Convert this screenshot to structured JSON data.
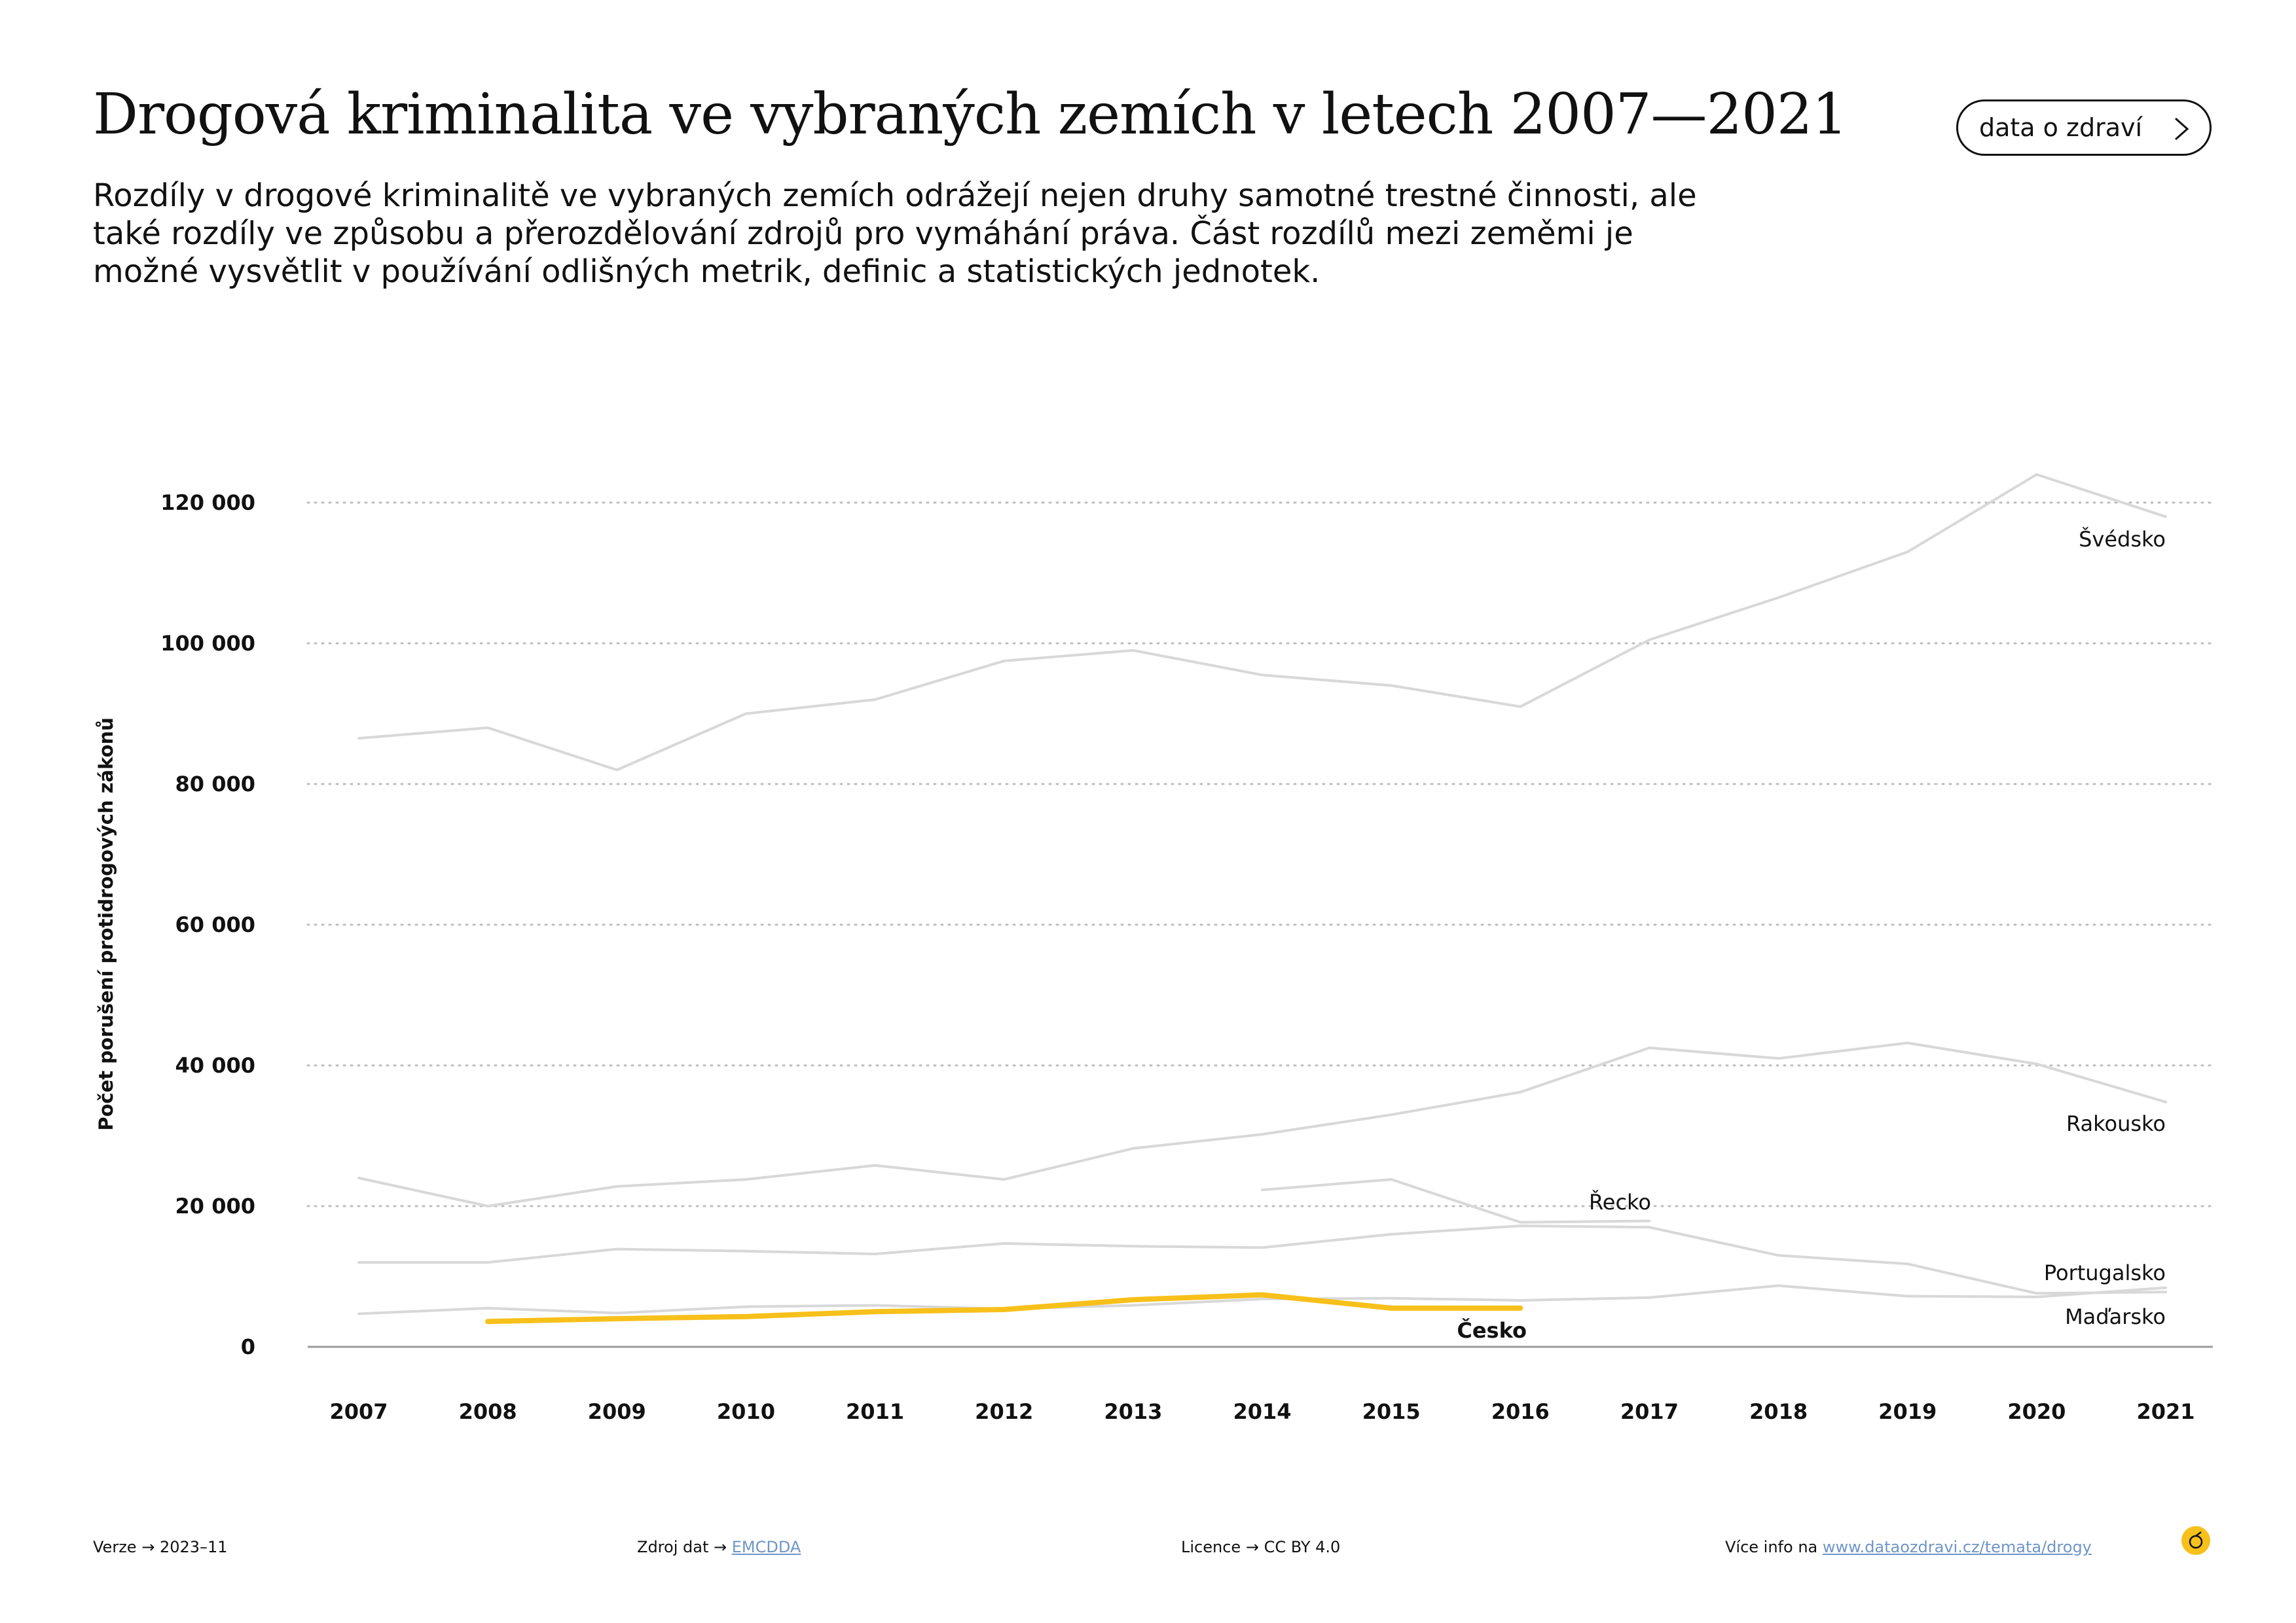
{
  "header": {
    "title": "Drogová kriminalita ve vybraných zemích v letech 2007—2021",
    "subtitle": "Rozdíly v drogové kriminalitě ve vybraných zemích odrážejí nejen druhy samotné trestné činnosti, ale také rozdíly ve způsobu a přerozdělování zdrojů pro vymáhání práva. Část rozdílů mezi zeměmi je možné vysvětlit v používání odlišných metrik, definic a statistických jednotek.",
    "button_label": "data o zdraví"
  },
  "footer": {
    "version_label": "Verze",
    "version_value": "2023–11",
    "source_label": "Zdroj dat",
    "source_value": "EMCDDA",
    "license_label": "Licence",
    "license_value": "CC BY 4.0",
    "more_label": "Více info na",
    "more_value": "www.dataozdravi.cz/temata/drogy",
    "arrow": "→"
  },
  "colors": {
    "highlight": "#f7c01a",
    "muted_line": "#d8d8d8",
    "grid": "#bdbdbd",
    "text": "#111111",
    "link": "#6f95c8"
  },
  "chart_data": {
    "type": "line",
    "title": "",
    "xlabel": "",
    "ylabel": "Počet porušení protidrogových zákonů",
    "x": [
      2007,
      2008,
      2009,
      2010,
      2011,
      2012,
      2013,
      2014,
      2015,
      2016,
      2017,
      2018,
      2019,
      2020,
      2021
    ],
    "ylim": [
      0,
      125000
    ],
    "yticks": [
      0,
      20000,
      40000,
      60000,
      80000,
      100000,
      120000
    ],
    "ytick_labels": [
      "0",
      "20 000",
      "40 000",
      "60 000",
      "80 000",
      "100 000",
      "120 000"
    ],
    "grid": "horizontal-dotted",
    "legend": "direct-labels",
    "series": [
      {
        "name": "Švédsko",
        "highlight": false,
        "values": [
          86500,
          88000,
          82000,
          90000,
          92000,
          97500,
          99000,
          95500,
          94000,
          91000,
          100500,
          106500,
          113000,
          124000,
          118000
        ]
      },
      {
        "name": "Rakousko",
        "highlight": false,
        "values": [
          24000,
          20000,
          22800,
          23800,
          25800,
          23800,
          28200,
          30200,
          33000,
          36200,
          42500,
          41000,
          43200,
          40200,
          34800
        ]
      },
      {
        "name": "Řecko",
        "highlight": false,
        "values": [
          null,
          null,
          null,
          null,
          null,
          null,
          null,
          22300,
          23800,
          17700,
          17900,
          null,
          null,
          null,
          null
        ]
      },
      {
        "name": "Portugalsko",
        "highlight": false,
        "values": [
          12000,
          12000,
          13900,
          13600,
          13200,
          14700,
          14300,
          14100,
          16000,
          17200,
          17000,
          13000,
          11800,
          7600,
          7800
        ]
      },
      {
        "name": "Maďarsko",
        "highlight": false,
        "values": [
          4700,
          5500,
          4800,
          5700,
          5900,
          5400,
          5900,
          6800,
          6900,
          6600,
          7000,
          8700,
          7200,
          7100,
          8400
        ]
      },
      {
        "name": "Česko",
        "highlight": true,
        "values": [
          null,
          3600,
          4000,
          4300,
          5000,
          5300,
          6700,
          7400,
          5500,
          5500,
          null,
          null,
          null,
          null,
          null
        ]
      }
    ]
  }
}
